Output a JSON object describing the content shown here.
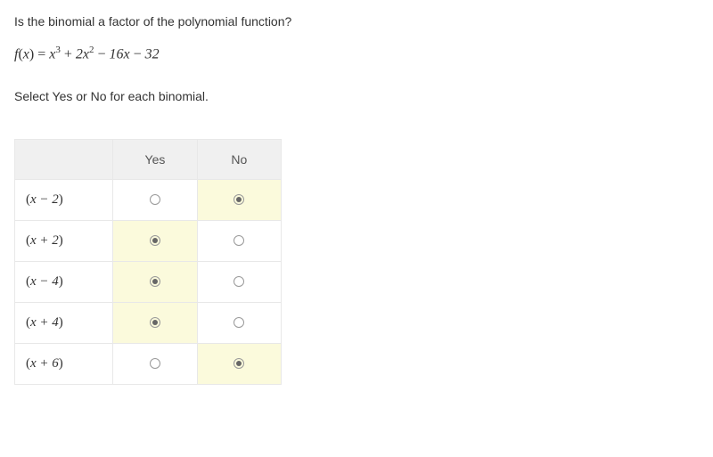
{
  "question": "Is the binomial a factor of the polynomial function?",
  "formula_html": "<span>f</span><span class='op'>(</span><span>x</span><span class='op'>)</span> <span class='op'>=</span> <span>x</span><sup>3</sup> <span class='op'>+</span> 2<span>x</span><sup>2</sup> <span class='op'>−</span> 16<span>x</span> <span class='op'>−</span> 32",
  "instruction": "Select Yes or No for each binomial.",
  "columns": [
    "Yes",
    "No"
  ],
  "rows": [
    {
      "label_html": "<span class='paren'>(</span>x <span class='op'>−</span> 2<span class='paren'>)</span>",
      "selected": 1
    },
    {
      "label_html": "<span class='paren'>(</span>x <span class='op'>+</span> 2<span class='paren'>)</span>",
      "selected": 0
    },
    {
      "label_html": "<span class='paren'>(</span>x <span class='op'>−</span> 4<span class='paren'>)</span>",
      "selected": 0
    },
    {
      "label_html": "<span class='paren'>(</span>x <span class='op'>+</span> 4<span class='paren'>)</span>",
      "selected": 0
    },
    {
      "label_html": "<span class='paren'>(</span>x <span class='op'>+</span> 6<span class='paren'>)</span>",
      "selected": 1
    }
  ],
  "style": {
    "highlight_bg": "#fbfadc",
    "header_bg": "#f0f0f0",
    "border_color": "#e8e8e8"
  }
}
